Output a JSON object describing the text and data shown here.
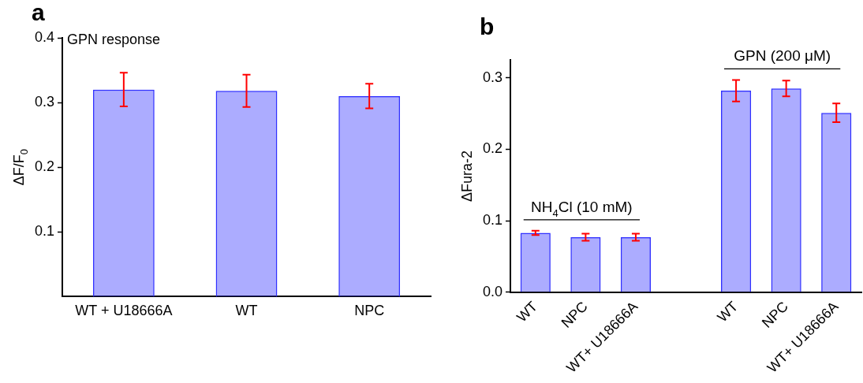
{
  "chart_data": [
    {
      "type": "bar",
      "title": "a",
      "ylabel": "ΔF/F$_{0}$",
      "categories": [
        "WT + U18666A",
        "WT",
        "NPC"
      ],
      "values": [
        0.32,
        0.318,
        0.31
      ],
      "errors": [
        0.026,
        0.025,
        0.019
      ],
      "color": "#3030ff",
      "ylim": [
        0,
        0.4
      ],
      "yticks": [
        0.1,
        0.2,
        0.3,
        0.4
      ],
      "grid": false,
      "legend": false,
      "annotations": [
        "GPN response"
      ]
    },
    {
      "type": "bar",
      "title": "b",
      "ylabel": "ΔFura-2",
      "categories": [
        "WT",
        "NPC",
        "WT+ U18666A",
        null,
        "WT",
        "NPC",
        "WT+ U18666A"
      ],
      "values": [
        0.083,
        0.077,
        0.077,
        null,
        0.282,
        0.285,
        0.251
      ],
      "errors": [
        0.003,
        0.005,
        0.005,
        null,
        0.015,
        0.011,
        0.013
      ],
      "color": "#3030ff",
      "ylim": [
        0,
        0.325
      ],
      "yticks": [
        {
          "value": 0,
          "label": "0.0"
        },
        0.1,
        0.2,
        0.3
      ],
      "grid": false,
      "legend": false,
      "annotations": [
        "NH$_{4}$Cl (10 mM)",
        "GPN (200 μM)"
      ]
    }
  ]
}
